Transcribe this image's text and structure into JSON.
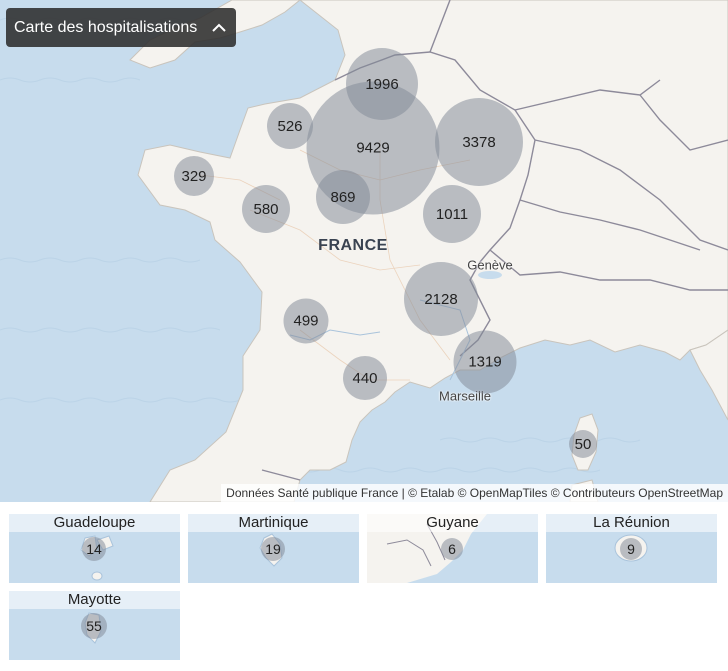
{
  "toggle": {
    "label": "Carte des hospitalisations",
    "icon": "chevron-up-icon"
  },
  "map": {
    "country_label": "FRANCE",
    "city_labels": {
      "geneve": "Genève",
      "marseille": "Marseille"
    },
    "clusters": [
      {
        "id": "idf",
        "value": "9429"
      },
      {
        "id": "hauts-de-france",
        "value": "1996"
      },
      {
        "id": "grand-est",
        "value": "3378"
      },
      {
        "id": "auvergne-rhone-alpes",
        "value": "2128"
      },
      {
        "id": "paca",
        "value": "1319"
      },
      {
        "id": "bourgogne-franche-comte",
        "value": "1011"
      },
      {
        "id": "centre-val-de-loire",
        "value": "869"
      },
      {
        "id": "pays-de-la-loire",
        "value": "580"
      },
      {
        "id": "normandie",
        "value": "526"
      },
      {
        "id": "nouvelle-aquitaine",
        "value": "499"
      },
      {
        "id": "occitanie",
        "value": "440"
      },
      {
        "id": "bretagne",
        "value": "329"
      },
      {
        "id": "corse",
        "value": "50"
      }
    ]
  },
  "attribution": {
    "source": "Données Santé publique France",
    "separator": " | ",
    "credits": [
      "© Etalab",
      "© OpenMapTiles",
      "© Contributeurs OpenStreetMap"
    ]
  },
  "insets": {
    "guadeloupe": {
      "title": "Guadeloupe",
      "value": "14"
    },
    "martinique": {
      "title": "Martinique",
      "value": "19"
    },
    "guyane": {
      "title": "Guyane",
      "value": "6"
    },
    "reunion": {
      "title": "La Réunion",
      "value": "9"
    },
    "mayotte": {
      "title": "Mayotte",
      "value": "55"
    }
  },
  "colors": {
    "sea": "#c7dced",
    "land": "#f5f3ef",
    "cluster": "#828a98",
    "toggle_bg": "#2d2d2d"
  }
}
